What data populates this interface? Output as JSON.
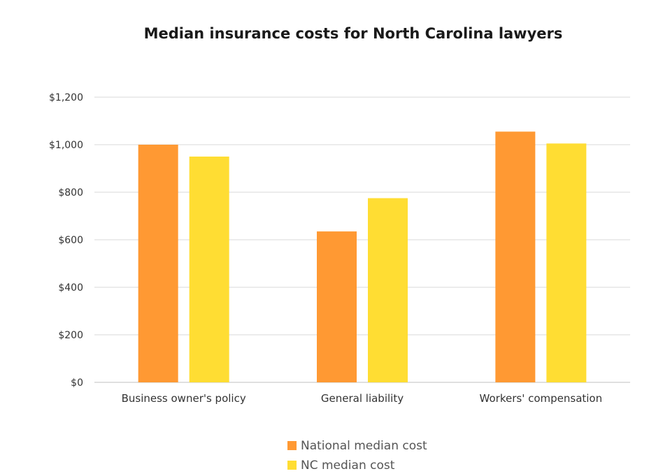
{
  "chart_data": {
    "type": "bar",
    "title": "Median insurance costs for North Carolina lawyers",
    "categories": [
      "Business owner's policy",
      "General liability",
      "Workers' compensation"
    ],
    "series": [
      {
        "name": "National median cost",
        "values": [
          1000,
          635,
          1055
        ],
        "color": "#FF9933"
      },
      {
        "name": "NC median cost",
        "values": [
          950,
          775,
          1005
        ],
        "color": "#FFDD33"
      }
    ],
    "yticks": [
      "$0",
      "$200",
      "$400",
      "$600",
      "$800",
      "$1,000",
      "$1,200"
    ],
    "ylim": [
      0,
      1200
    ],
    "grid": true,
    "legend": "bottom"
  }
}
